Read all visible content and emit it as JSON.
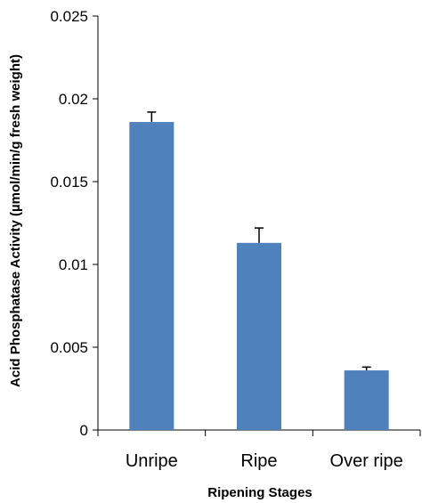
{
  "chart_data": {
    "type": "bar",
    "title": "",
    "xlabel": "Ripening Stages",
    "ylabel": "Acid Phosphatase Activity (µmol/min/g fresh weight)",
    "categories": [
      "Unripe",
      "Ripe",
      "Over ripe"
    ],
    "values": [
      0.0186,
      0.0113,
      0.0036
    ],
    "errors": [
      0.0006,
      0.0009,
      0.0002
    ],
    "ylim": [
      0,
      0.025
    ],
    "yticks": [
      "0",
      "0.005",
      "0.01",
      "0.015",
      "0.02",
      "0.025"
    ],
    "grid": false,
    "bar_color": "#4F81BD"
  }
}
